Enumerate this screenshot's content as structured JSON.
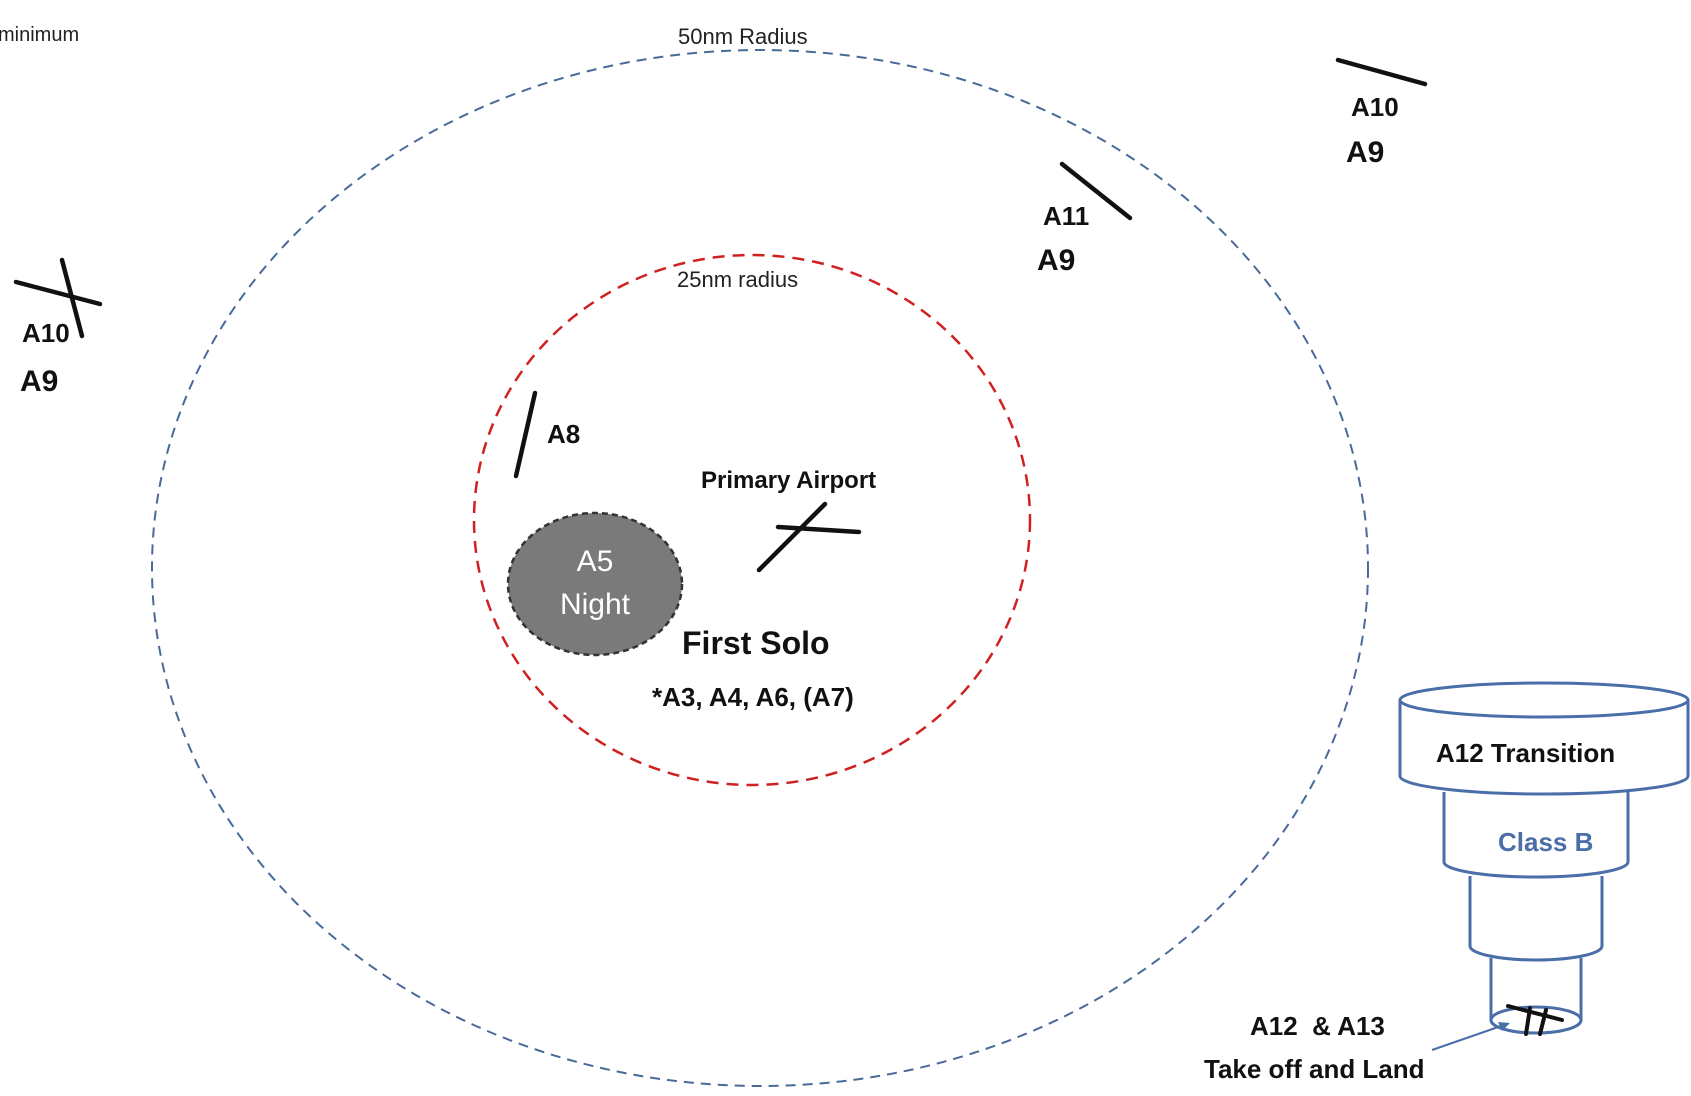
{
  "labels": {
    "minimum": "minimum",
    "radius_50": "50nm Radius",
    "radius_25": "25nm radius",
    "primary_airport": "Primary Airport",
    "first_solo": "First Solo",
    "first_solo_lessons": "*A3, A4, A6, (A7)",
    "a8": "A8",
    "a5": "A5",
    "night": "Night",
    "a11": "A11",
    "a10_top": "A10",
    "a10_left": "A10",
    "a9_top": "A9",
    "a9_mid": "A9",
    "a9_left": "A9",
    "a12_transition": "A12  Transition",
    "class_b": "Class B",
    "a12_a13": "A12  & A13",
    "take_off_land": "Take off and Land"
  },
  "colors": {
    "outer_ring": "#4a6a9a",
    "inner_ring": "#d02020",
    "night_fill": "#7a7a7a",
    "airspace": "#4a6ea8",
    "runway": "#111111"
  }
}
